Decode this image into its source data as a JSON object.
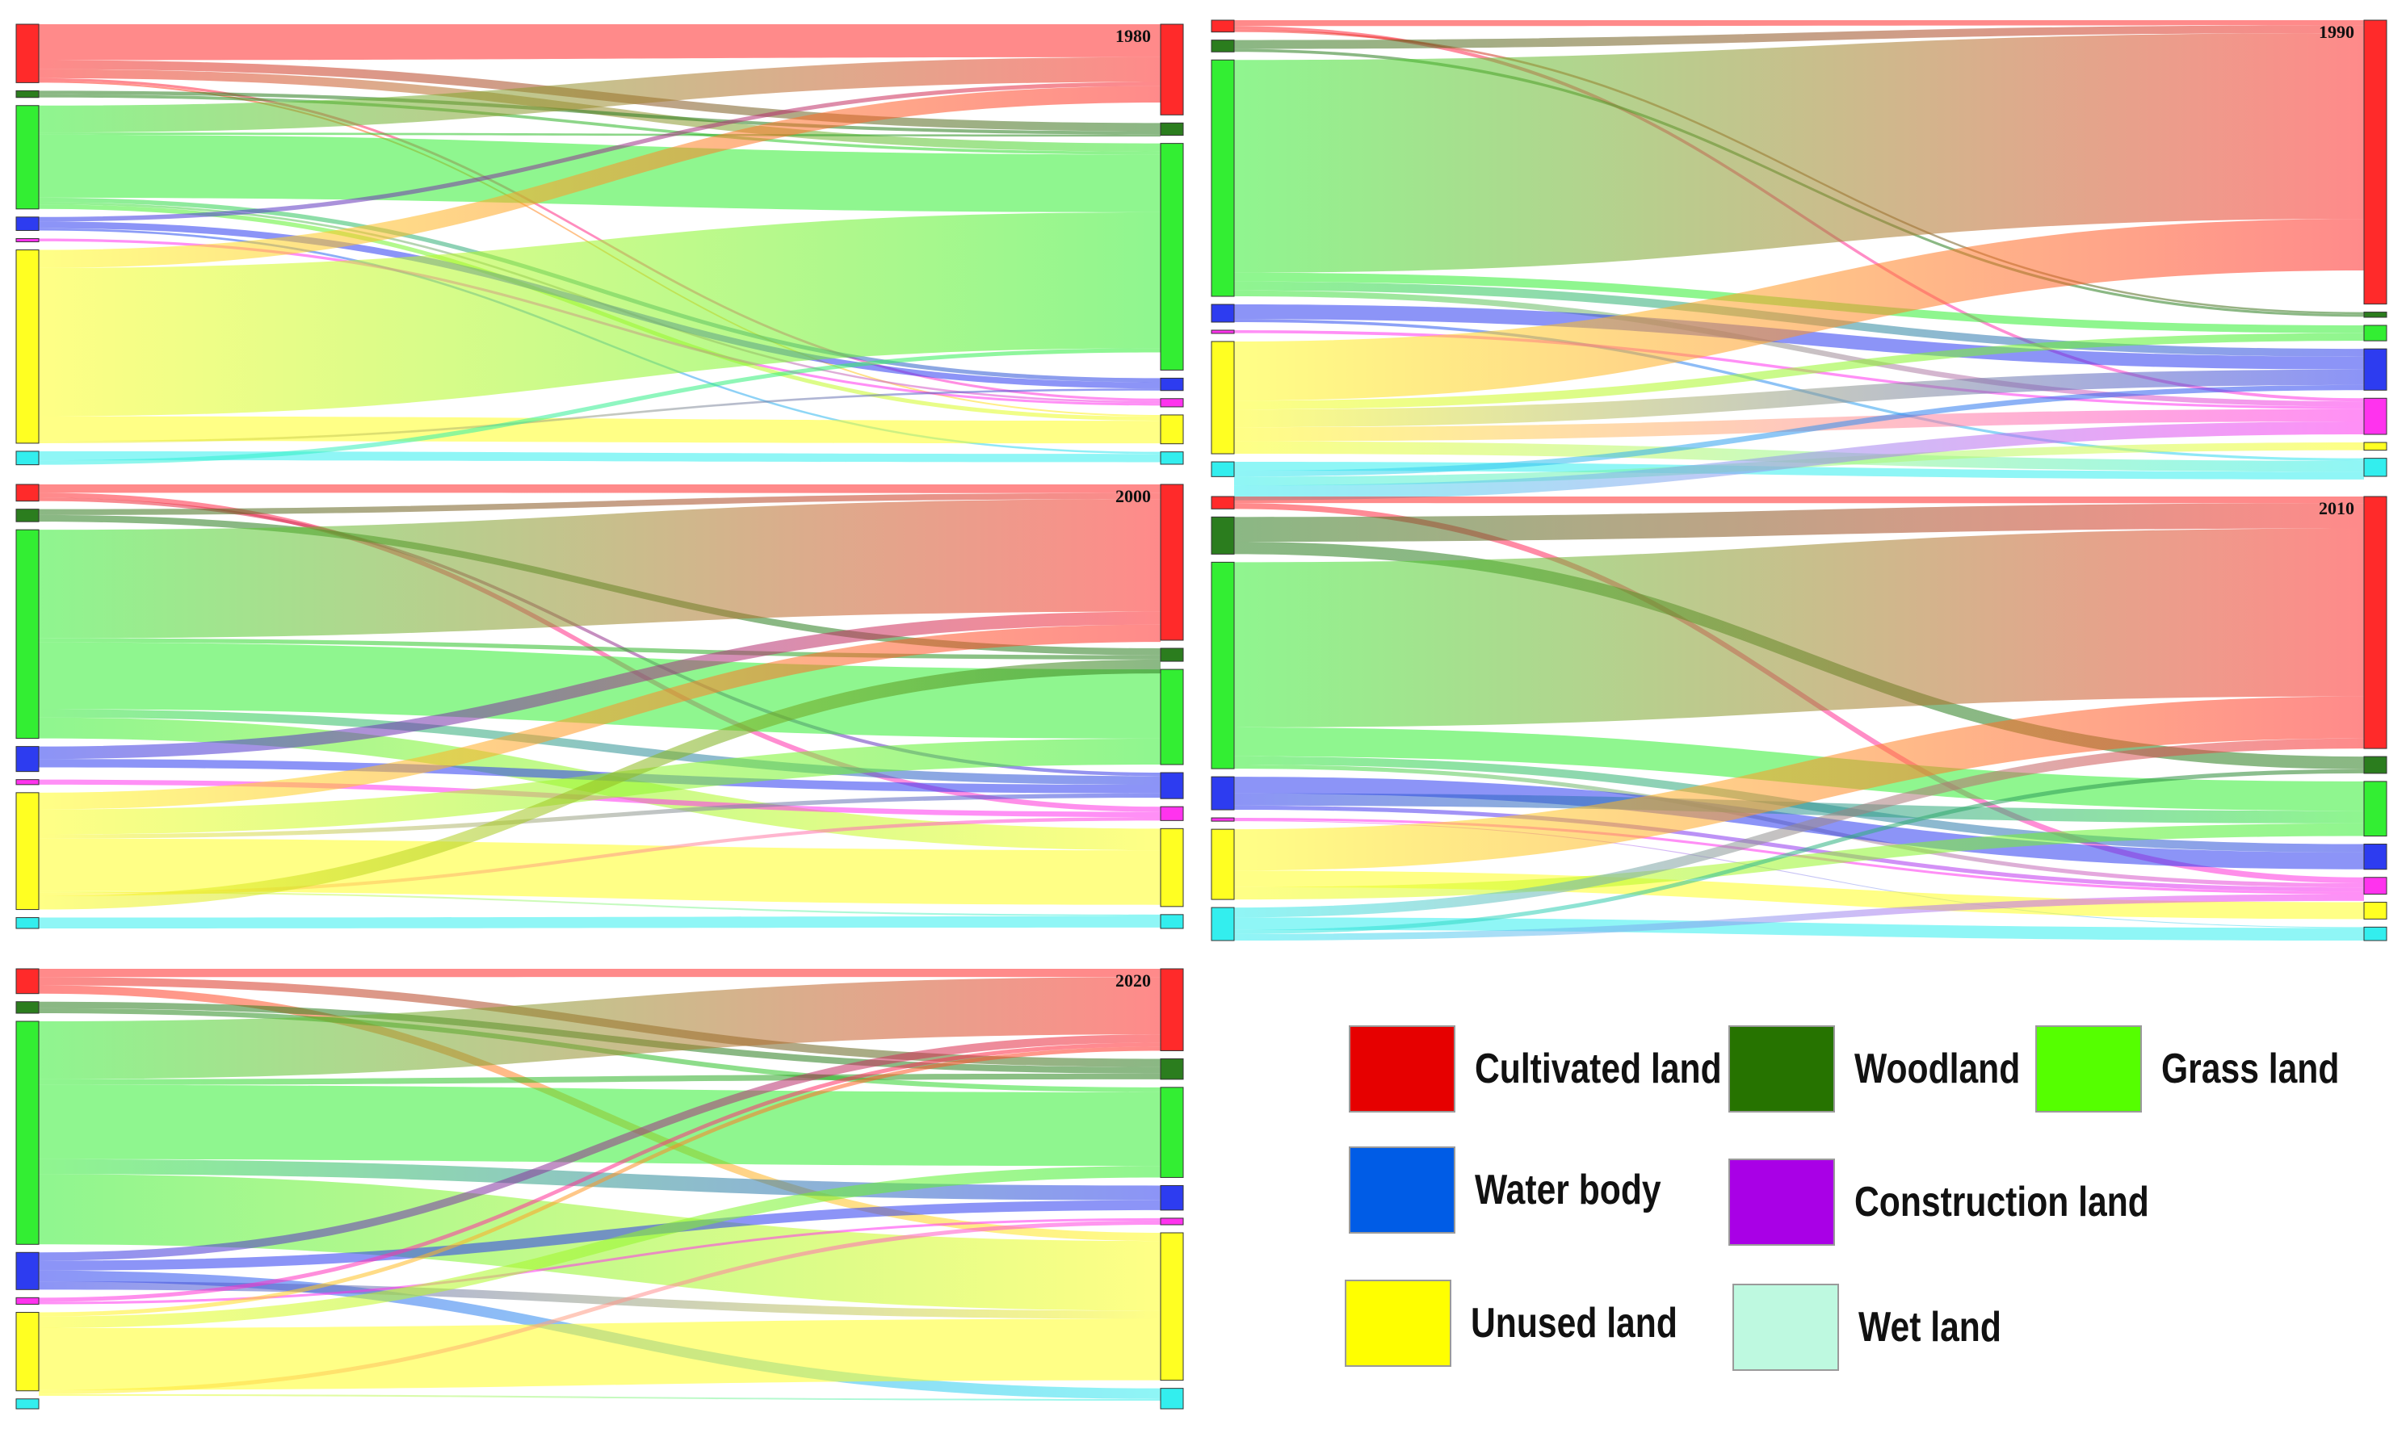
{
  "categories": [
    "Cultivated land",
    "Woodland",
    "Grass land",
    "Water body",
    "Construction land",
    "Unused land",
    "Wet land"
  ],
  "colors": {
    "Cultivated land": "#ff2a2a",
    "Woodland": "#2b7d1e",
    "Grass land": "#33ee33",
    "Water body": "#2d3cf0",
    "Construction land": "#ff33ee",
    "Unused land": "#ffff22",
    "Wet land": "#33eeee"
  },
  "legend": {
    "items": [
      {
        "label": "Cultivated land",
        "color": "#e60000"
      },
      {
        "label": "Woodland",
        "color": "#267300"
      },
      {
        "label": "Grass land",
        "color": "#55ff00"
      },
      {
        "label": "Water body",
        "color": "#005ce6"
      },
      {
        "label": "Construction land",
        "color": "#a900e6"
      },
      {
        "label": "Unused land",
        "color": "#ffff00"
      },
      {
        "label": "Wet land",
        "color": "#bef9e0"
      }
    ]
  },
  "chart_data": [
    {
      "type": "sankey",
      "title": "1980",
      "source": [
        13.0,
        1.5,
        23.0,
        3.0,
        0.6,
        43.0,
        3.0
      ],
      "target": [
        22.0,
        3.0,
        55.0,
        3.0,
        2.0,
        7.0,
        3.0
      ],
      "flows": [
        [
          "Cultivated land",
          "Cultivated land",
          8
        ],
        [
          "Cultivated land",
          "Woodland",
          2
        ],
        [
          "Cultivated land",
          "Grass land",
          2
        ],
        [
          "Cultivated land",
          "Construction land",
          0.6
        ],
        [
          "Cultivated land",
          "Unused land",
          0.4
        ],
        [
          "Woodland",
          "Woodland",
          0.8
        ],
        [
          "Woodland",
          "Grass land",
          0.7
        ],
        [
          "Grass land",
          "Cultivated land",
          6
        ],
        [
          "Grass land",
          "Woodland",
          0.5
        ],
        [
          "Grass land",
          "Grass land",
          14
        ],
        [
          "Grass land",
          "Water body",
          1
        ],
        [
          "Grass land",
          "Construction land",
          0.5
        ],
        [
          "Grass land",
          "Unused land",
          1
        ],
        [
          "Water body",
          "Cultivated land",
          1
        ],
        [
          "Water body",
          "Water body",
          1.5
        ],
        [
          "Water body",
          "Wet land",
          0.5
        ],
        [
          "Construction land",
          "Construction land",
          0.6
        ],
        [
          "Unused land",
          "Cultivated land",
          4
        ],
        [
          "Unused land",
          "Grass land",
          33
        ],
        [
          "Unused land",
          "Unused land",
          5.5
        ],
        [
          "Unused land",
          "Water body",
          0.5
        ],
        [
          "Wet land",
          "Wet land",
          2
        ],
        [
          "Wet land",
          "Grass land",
          1
        ]
      ]
    },
    {
      "type": "sankey",
      "title": "1990",
      "source": [
        2.0,
        2.0,
        40.0,
        3.0,
        0.5,
        19.0,
        2.5
      ],
      "target": [
        55.0,
        1.0,
        3.0,
        8.0,
        7.0,
        1.5,
        3.5
      ],
      "flows": [
        [
          "Cultivated land",
          "Cultivated land",
          1
        ],
        [
          "Cultivated land",
          "Construction land",
          0.6
        ],
        [
          "Cultivated land",
          "Woodland",
          0.4
        ],
        [
          "Woodland",
          "Cultivated land",
          1.5
        ],
        [
          "Woodland",
          "Woodland",
          0.5
        ],
        [
          "Grass land",
          "Cultivated land",
          36
        ],
        [
          "Grass land",
          "Grass land",
          1.5
        ],
        [
          "Grass land",
          "Water body",
          1.5
        ],
        [
          "Grass land",
          "Construction land",
          1
        ],
        [
          "Water body",
          "Water body",
          2.5
        ],
        [
          "Water body",
          "Wet land",
          0.5
        ],
        [
          "Construction land",
          "Construction land",
          0.5
        ],
        [
          "Unused land",
          "Cultivated land",
          10
        ],
        [
          "Unused land",
          "Grass land",
          1.5
        ],
        [
          "Unused land",
          "Water body",
          3
        ],
        [
          "Unused land",
          "Construction land",
          2.4
        ],
        [
          "Unused land",
          "Wet land",
          2.1
        ],
        [
          "Wet land",
          "Wet land",
          1.5
        ],
        [
          "Wet land",
          "Water body",
          1
        ],
        [
          "Wet land",
          "Unused land",
          1.5
        ],
        [
          "Wet land",
          "Construction land",
          2.5
        ]
      ]
    },
    {
      "type": "sankey",
      "title": "2000",
      "source": [
        2.0,
        1.5,
        25.0,
        3.0,
        0.6,
        14.0,
        1.3
      ],
      "target": [
        18.0,
        1.5,
        11.0,
        3.0,
        1.6,
        9.0,
        1.6
      ],
      "flows": [
        [
          "Cultivated land",
          "Cultivated land",
          1
        ],
        [
          "Cultivated land",
          "Construction land",
          0.6
        ],
        [
          "Cultivated land",
          "Water body",
          0.4
        ],
        [
          "Woodland",
          "Cultivated land",
          0.7
        ],
        [
          "Woodland",
          "Woodland",
          0.8
        ],
        [
          "Grass land",
          "Cultivated land",
          13
        ],
        [
          "Grass land",
          "Woodland",
          0.5
        ],
        [
          "Grass land",
          "Grass land",
          8
        ],
        [
          "Grass land",
          "Water body",
          1
        ],
        [
          "Grass land",
          "Unused land",
          2.5
        ],
        [
          "Water body",
          "Cultivated land",
          1.5
        ],
        [
          "Water body",
          "Water body",
          1
        ],
        [
          "Construction land",
          "Construction land",
          0.6
        ],
        [
          "Unused land",
          "Cultivated land",
          2
        ],
        [
          "Unused land",
          "Grass land",
          3
        ],
        [
          "Unused land",
          "Water body",
          0.5
        ],
        [
          "Unused land",
          "Unused land",
          6.3
        ],
        [
          "Unused land",
          "Wet land",
          0.2
        ],
        [
          "Unused land",
          "Construction land",
          0.4
        ],
        [
          "Unused land",
          "Woodland",
          1.6
        ],
        [
          "Wet land",
          "Wet land",
          1.3
        ]
      ]
    },
    {
      "type": "sankey",
      "title": "2010",
      "source": [
        1.5,
        4.5,
        25.0,
        4.0,
        0.4,
        8.5,
        4.0
      ],
      "target": [
        30.0,
        2.0,
        6.5,
        3.0,
        2.0,
        2.0,
        1.6
      ],
      "flows": [
        [
          "Cultivated land",
          "Cultivated land",
          0.8
        ],
        [
          "Cultivated land",
          "Construction land",
          0.7
        ],
        [
          "Woodland",
          "Cultivated land",
          3
        ],
        [
          "Woodland",
          "Woodland",
          1.5
        ],
        [
          "Grass land",
          "Cultivated land",
          20
        ],
        [
          "Grass land",
          "Grass land",
          3.5
        ],
        [
          "Grass land",
          "Water body",
          1
        ],
        [
          "Grass land",
          "Construction land",
          0.5
        ],
        [
          "Water body",
          "Water body",
          2
        ],
        [
          "Water body",
          "Grass land",
          1.5
        ],
        [
          "Water body",
          "Construction land",
          0.5
        ],
        [
          "Construction land",
          "Construction land",
          0.3
        ],
        [
          "Construction land",
          "Wet land",
          0.1
        ],
        [
          "Unused land",
          "Cultivated land",
          5
        ],
        [
          "Unused land",
          "Unused land",
          2
        ],
        [
          "Unused land",
          "Grass land",
          1.5
        ],
        [
          "Wet land",
          "Cultivated land",
          1.2
        ],
        [
          "Wet land",
          "Wet land",
          1.5
        ],
        [
          "Wet land",
          "Woodland",
          0.5
        ],
        [
          "Wet land",
          "Construction land",
          0.8
        ]
      ]
    },
    {
      "type": "sankey",
      "title": "2020",
      "source": [
        3.0,
        1.4,
        27.0,
        4.5,
        0.8,
        9.5,
        1.2
      ],
      "target": [
        10.0,
        2.5,
        11.0,
        3.0,
        0.8,
        18.0,
        2.5
      ],
      "flows": [
        [
          "Cultivated land",
          "Cultivated land",
          1
        ],
        [
          "Cultivated land",
          "Woodland",
          1
        ],
        [
          "Cultivated land",
          "Unused land",
          1
        ],
        [
          "Woodland",
          "Woodland",
          0.8
        ],
        [
          "Woodland",
          "Grass land",
          0.6
        ],
        [
          "Grass land",
          "Cultivated land",
          7
        ],
        [
          "Grass land",
          "Woodland",
          0.7
        ],
        [
          "Grass land",
          "Grass land",
          9
        ],
        [
          "Grass land",
          "Water body",
          1.8
        ],
        [
          "Grass land",
          "Unused land",
          8.5
        ],
        [
          "Water body",
          "Cultivated land",
          1
        ],
        [
          "Water body",
          "Water body",
          1.2
        ],
        [
          "Water body",
          "Wet land",
          1.3
        ],
        [
          "Water body",
          "Unused land",
          1
        ],
        [
          "Construction land",
          "Cultivated land",
          0.5
        ],
        [
          "Construction land",
          "Construction land",
          0.3
        ],
        [
          "Unused land",
          "Cultivated land",
          0.5
        ],
        [
          "Unused land",
          "Grass land",
          1.4
        ],
        [
          "Unused land",
          "Unused land",
          7.5
        ],
        [
          "Unused land",
          "Construction land",
          0.5
        ],
        [
          "Unused land",
          "Wet land",
          0.2
        ]
      ]
    }
  ]
}
